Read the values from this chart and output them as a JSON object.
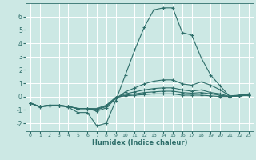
{
  "title": "",
  "xlabel": "Humidex (Indice chaleur)",
  "ylabel": "",
  "bg_color": "#cce8e4",
  "grid_color": "#ffffff",
  "line_color": "#2e6e6a",
  "xlim": [
    -0.5,
    23.5
  ],
  "ylim": [
    -2.6,
    7.0
  ],
  "xticks": [
    0,
    1,
    2,
    3,
    4,
    5,
    6,
    7,
    8,
    9,
    10,
    11,
    12,
    13,
    14,
    15,
    16,
    17,
    18,
    19,
    20,
    21,
    22,
    23
  ],
  "yticks": [
    -2,
    -1,
    0,
    1,
    2,
    3,
    4,
    5,
    6
  ],
  "series": [
    {
      "x": [
        0,
        1,
        2,
        3,
        4,
        5,
        6,
        7,
        8,
        9,
        10,
        11,
        12,
        13,
        14,
        15,
        16,
        17,
        18,
        19,
        20,
        21,
        22,
        23
      ],
      "y": [
        -0.5,
        -0.8,
        -0.7,
        -0.7,
        -0.8,
        -1.2,
        -1.2,
        -2.2,
        -2.0,
        -0.3,
        1.6,
        3.5,
        5.2,
        6.5,
        6.65,
        6.65,
        4.8,
        4.6,
        2.9,
        1.6,
        0.8,
        0.0,
        0.1,
        0.2
      ]
    },
    {
      "x": [
        0,
        1,
        2,
        3,
        4,
        5,
        6,
        7,
        8,
        9,
        10,
        11,
        12,
        13,
        14,
        15,
        16,
        17,
        18,
        19,
        20,
        21,
        22,
        23
      ],
      "y": [
        -0.5,
        -0.75,
        -0.65,
        -0.65,
        -0.75,
        -0.9,
        -0.9,
        -1.1,
        -0.85,
        -0.15,
        0.35,
        0.65,
        0.95,
        1.15,
        1.25,
        1.25,
        0.95,
        0.85,
        1.1,
        0.85,
        0.5,
        0.05,
        0.1,
        0.15
      ]
    },
    {
      "x": [
        0,
        1,
        2,
        3,
        4,
        5,
        6,
        7,
        8,
        9,
        10,
        11,
        12,
        13,
        14,
        15,
        16,
        17,
        18,
        19,
        20,
        21,
        22,
        23
      ],
      "y": [
        -0.5,
        -0.75,
        -0.65,
        -0.65,
        -0.75,
        -0.9,
        -0.9,
        -1.0,
        -0.75,
        -0.1,
        0.2,
        0.35,
        0.5,
        0.6,
        0.65,
        0.65,
        0.5,
        0.4,
        0.5,
        0.3,
        0.2,
        0.0,
        0.05,
        0.1
      ]
    },
    {
      "x": [
        0,
        1,
        2,
        3,
        4,
        5,
        6,
        7,
        8,
        9,
        10,
        11,
        12,
        13,
        14,
        15,
        16,
        17,
        18,
        19,
        20,
        21,
        22,
        23
      ],
      "y": [
        -0.5,
        -0.75,
        -0.65,
        -0.65,
        -0.75,
        -0.9,
        -0.9,
        -0.95,
        -0.7,
        -0.1,
        0.1,
        0.2,
        0.3,
        0.35,
        0.4,
        0.4,
        0.3,
        0.25,
        0.3,
        0.2,
        0.1,
        0.0,
        0.05,
        0.1
      ]
    },
    {
      "x": [
        0,
        1,
        2,
        3,
        4,
        5,
        6,
        7,
        8,
        9,
        10,
        11,
        12,
        13,
        14,
        15,
        16,
        17,
        18,
        19,
        20,
        21,
        22,
        23
      ],
      "y": [
        -0.5,
        -0.75,
        -0.65,
        -0.65,
        -0.75,
        -0.9,
        -0.9,
        -0.9,
        -0.65,
        -0.05,
        0.05,
        0.1,
        0.15,
        0.2,
        0.2,
        0.2,
        0.1,
        0.1,
        0.1,
        0.05,
        0.0,
        0.0,
        0.05,
        0.1
      ]
    }
  ]
}
